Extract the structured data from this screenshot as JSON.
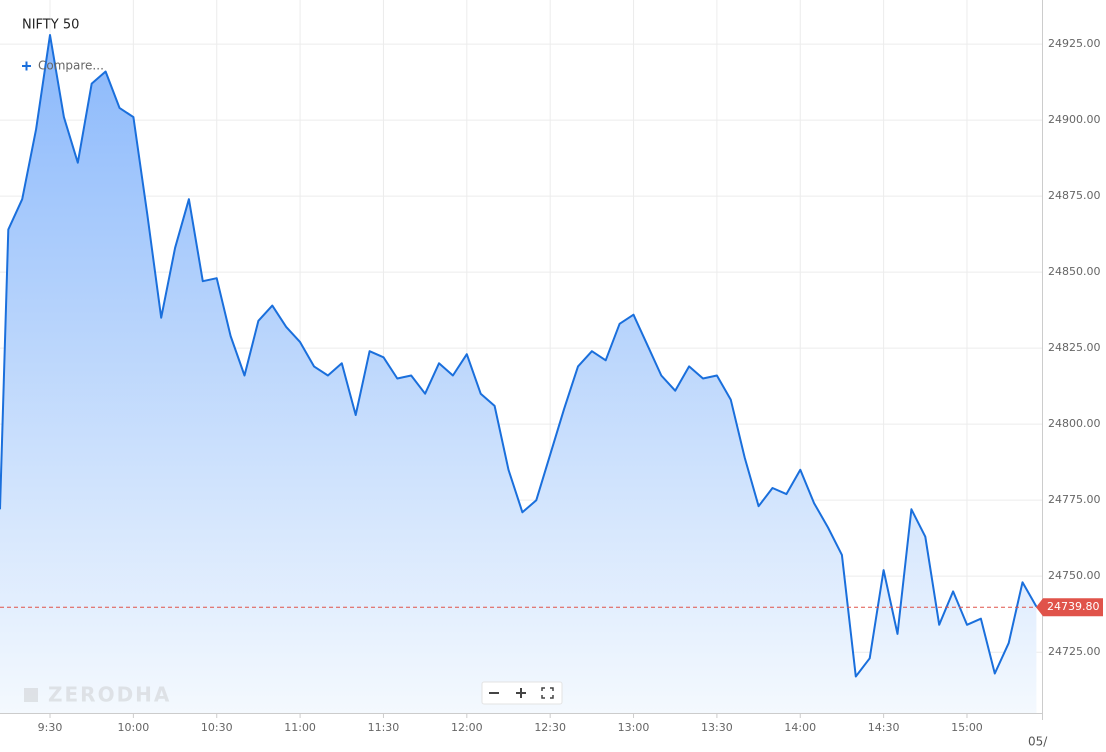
{
  "chart_data": {
    "type": "area",
    "title": "NIFTY 50",
    "compare_button": "Compare...",
    "watermark": "ZERODHA",
    "date_label": "05/",
    "color": "#1a6fdc",
    "grid": true,
    "x": [
      552,
      555,
      560,
      565,
      570,
      575,
      580,
      585,
      590,
      595,
      600,
      605,
      610,
      615,
      620,
      625,
      630,
      635,
      640,
      645,
      650,
      655,
      660,
      665,
      670,
      675,
      680,
      685,
      690,
      695,
      700,
      705,
      710,
      715,
      720,
      725,
      730,
      735,
      740,
      745,
      750,
      755,
      760,
      765,
      770,
      775,
      780,
      785,
      790,
      795,
      800,
      805,
      810,
      815,
      820,
      825,
      830,
      835,
      840,
      845,
      850,
      855,
      860,
      865,
      870,
      875,
      880,
      885,
      890,
      895,
      900,
      905,
      910,
      915,
      920,
      925
    ],
    "values": [
      24772,
      24864,
      24874,
      24897,
      24928,
      24901,
      24886,
      24912,
      24916,
      24904,
      24901,
      24869,
      24835,
      24858,
      24874,
      24847,
      24848,
      24829,
      24816,
      24834,
      24839,
      24832,
      24827,
      24819,
      24816,
      24820,
      24803,
      24824,
      24822,
      24815,
      24816,
      24810,
      24820,
      24816,
      24823,
      24810,
      24806,
      24785,
      24771,
      24775,
      24790,
      24805,
      24819,
      24824,
      24821,
      24833,
      24836,
      24826,
      24816,
      24811,
      24819,
      24815,
      24816,
      24808,
      24789,
      24773,
      24779,
      24777,
      24785,
      24774,
      24766,
      24757,
      24717,
      24723,
      24752,
      24731,
      24772,
      24763,
      24734,
      24745,
      24734,
      24736,
      24718,
      24728,
      24748,
      24740
    ],
    "xlim": [
      552,
      927
    ],
    "xticks": [
      {
        "value": 570,
        "label": "9:30"
      },
      {
        "value": 600,
        "label": "10:00"
      },
      {
        "value": 630,
        "label": "10:30"
      },
      {
        "value": 660,
        "label": "11:00"
      },
      {
        "value": 690,
        "label": "11:30"
      },
      {
        "value": 720,
        "label": "12:00"
      },
      {
        "value": 750,
        "label": "12:30"
      },
      {
        "value": 780,
        "label": "13:00"
      },
      {
        "value": 810,
        "label": "13:30"
      },
      {
        "value": 840,
        "label": "14:00"
      },
      {
        "value": 870,
        "label": "14:30"
      },
      {
        "value": 900,
        "label": "15:00"
      }
    ],
    "ylim": [
      24705,
      24939.5
    ],
    "yticks": [
      {
        "value": 24725,
        "label": "24725.00"
      },
      {
        "value": 24750,
        "label": "24750.00"
      },
      {
        "value": 24775,
        "label": "24775.00"
      },
      {
        "value": 24800,
        "label": "24800.00"
      },
      {
        "value": 24825,
        "label": "24825.00"
      },
      {
        "value": 24850,
        "label": "24850.00"
      },
      {
        "value": 24875,
        "label": "24875.00"
      },
      {
        "value": 24900,
        "label": "24900.00"
      },
      {
        "value": 24925,
        "label": "24925.00"
      }
    ],
    "last_value": {
      "value": 24739.8,
      "label": "24739.80",
      "color": "#e0534a"
    }
  }
}
